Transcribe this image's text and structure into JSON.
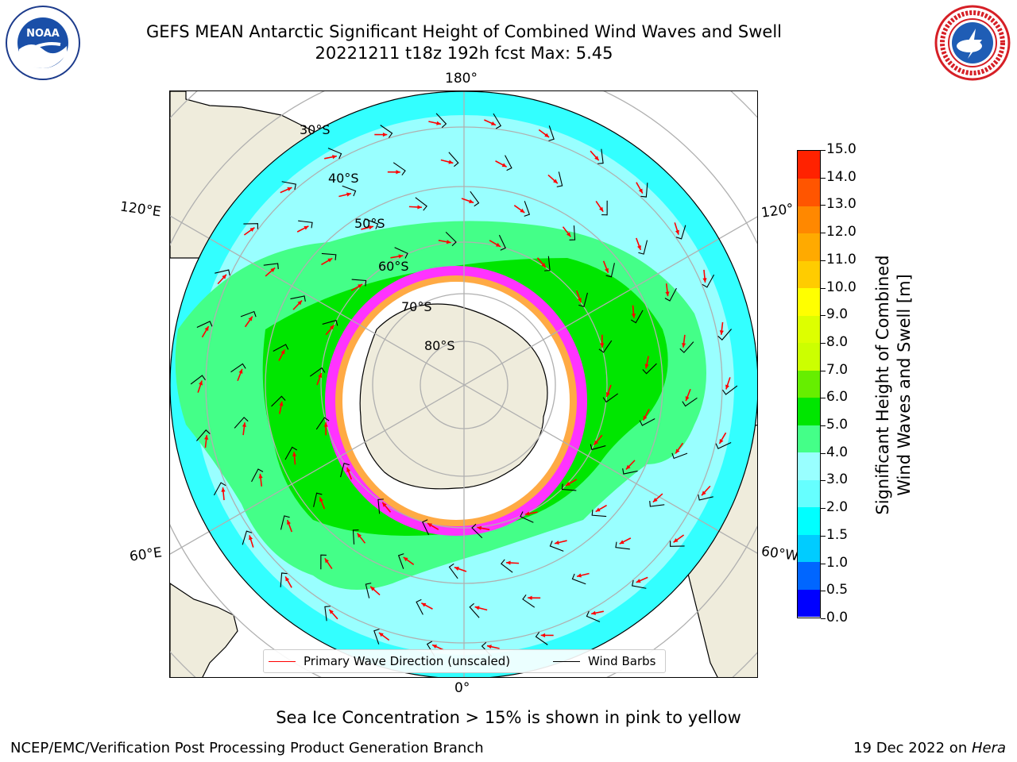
{
  "title": {
    "line1": "GEFS MEAN Antarctic Significant Height of Combined Wind Waves and Swell",
    "line2": "20221211 t18z 192h fcst   Max: 5.45"
  },
  "logos": {
    "left": "noaa-logo",
    "left_text": "NOAA",
    "right": "nws-logo"
  },
  "map": {
    "projection": "south-polar-stereographic",
    "lon_labels": {
      "top": "180°",
      "bottom": "0°",
      "left_upper": "120°E",
      "left_lower": "60°E",
      "right_upper": "120°",
      "right_lower": "60°W"
    },
    "lat_labels": [
      "30°S",
      "40°S",
      "50°S",
      "60°S",
      "70°S",
      "80°S"
    ],
    "colors": {
      "land": "#efecdc",
      "ice": "#ffffff",
      "grid": "#b0b0b0"
    }
  },
  "legend": {
    "wave_label": "Primary Wave Direction (unscaled)",
    "wind_label": "Wind Barbs",
    "wave_color": "#ff0000",
    "wind_color": "#000000"
  },
  "colorbar": {
    "label_line1": "Significant Height of Combined",
    "label_line2": "Wind Waves and Swell [m]",
    "ticks": [
      "0.0",
      "0.5",
      "1.0",
      "1.5",
      "2.0",
      "3.0",
      "4.0",
      "5.0",
      "6.0",
      "7.0",
      "8.0",
      "9.0",
      "10.0",
      "11.0",
      "12.0",
      "13.0",
      "14.0",
      "15.0"
    ],
    "colors": [
      "#0000ff",
      "#0066ff",
      "#00ccff",
      "#00ffff",
      "#66ffff",
      "#99ffff",
      "#44ff88",
      "#00e600",
      "#66ee00",
      "#ccff00",
      "#ddff00",
      "#ffff00",
      "#ffcc00",
      "#ffaa00",
      "#ff8800",
      "#ff5500",
      "#ff2200"
    ]
  },
  "note": "Sea Ice Concentration > 15% is shown in pink to yellow",
  "footer": {
    "left": "NCEP/EMC/Verification Post Processing Product Generation Branch",
    "right_date": "19 Dec 2022 on ",
    "right_host": "Hera"
  }
}
